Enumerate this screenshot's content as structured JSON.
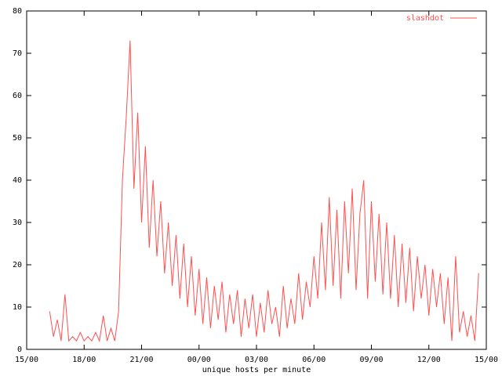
{
  "chart_data": {
    "type": "line",
    "xlabel": "unique hosts per minute",
    "x": [
      16.2,
      16.4,
      16.6,
      16.8,
      17.0,
      17.2,
      17.4,
      17.6,
      17.8,
      18.0,
      18.2,
      18.4,
      18.6,
      18.8,
      19.0,
      19.2,
      19.4,
      19.6,
      19.8,
      20.0,
      20.2,
      20.4,
      20.6,
      20.8,
      21.0,
      21.2,
      21.4,
      21.6,
      21.8,
      22.0,
      22.2,
      22.4,
      22.6,
      22.8,
      23.0,
      23.2,
      23.4,
      23.6,
      23.8,
      24.0,
      24.2,
      24.4,
      24.6,
      24.8,
      25.0,
      25.2,
      25.4,
      25.6,
      25.8,
      26.0,
      26.2,
      26.4,
      26.6,
      26.8,
      27.0,
      27.2,
      27.4,
      27.6,
      27.8,
      28.0,
      28.2,
      28.4,
      28.6,
      28.8,
      29.0,
      29.2,
      29.4,
      29.6,
      29.8,
      30.0,
      30.2,
      30.4,
      30.6,
      30.8,
      31.0,
      31.2,
      31.4,
      31.6,
      31.8,
      32.0,
      32.2,
      32.4,
      32.6,
      32.8,
      33.0,
      33.2,
      33.4,
      33.6,
      33.8,
      34.0,
      34.2,
      34.4,
      34.6,
      34.8,
      35.0,
      35.2,
      35.4,
      35.6,
      35.8,
      36.0,
      36.2,
      36.4,
      36.6,
      36.8,
      37.0,
      37.2,
      37.4,
      37.6,
      37.8,
      38.0,
      38.2,
      38.4,
      38.6
    ],
    "series": [
      {
        "name": "slashdot",
        "color": "#ff5050",
        "values": [
          9,
          3,
          7,
          2,
          13,
          2,
          3,
          2,
          4,
          2,
          3,
          2,
          4,
          2,
          8,
          2,
          5,
          2,
          9,
          40,
          55,
          73,
          38,
          56,
          30,
          48,
          24,
          40,
          22,
          35,
          18,
          30,
          15,
          27,
          12,
          25,
          10,
          22,
          8,
          19,
          6,
          17,
          5,
          15,
          7,
          16,
          4,
          13,
          6,
          14,
          3,
          12,
          5,
          13,
          3,
          11,
          4,
          14,
          6,
          10,
          3,
          15,
          5,
          12,
          6,
          18,
          7,
          16,
          10,
          22,
          12,
          30,
          14,
          36,
          15,
          33,
          12,
          35,
          18,
          38,
          14,
          32,
          40,
          12,
          35,
          16,
          32,
          13,
          30,
          12,
          27,
          10,
          25,
          11,
          24,
          9,
          22,
          12,
          20,
          8,
          19,
          10,
          18,
          6,
          17,
          2,
          22,
          4,
          9,
          3,
          8,
          2,
          18
        ]
      }
    ],
    "xlim": [
      15,
      39
    ],
    "xticks": [
      {
        "value": 15,
        "label": "15/00"
      },
      {
        "value": 18,
        "label": "18/00"
      },
      {
        "value": 21,
        "label": "21/00"
      },
      {
        "value": 24,
        "label": "00/00"
      },
      {
        "value": 27,
        "label": "03/00"
      },
      {
        "value": 30,
        "label": "06/00"
      },
      {
        "value": 33,
        "label": "09/00"
      },
      {
        "value": 36,
        "label": "12/00"
      },
      {
        "value": 39,
        "label": "15/00"
      }
    ],
    "ylim": [
      0,
      80
    ],
    "yticks": [
      0,
      10,
      20,
      30,
      40,
      50,
      60,
      70,
      80
    ],
    "legend": "top-right"
  }
}
